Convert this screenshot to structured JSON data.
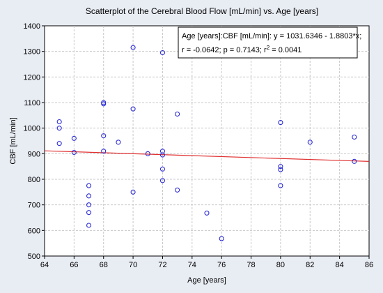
{
  "chart_data": {
    "type": "scatter",
    "title": "Scatterplot of the Cerebral Blood Flow [mL/min] vs. Age [years]",
    "xlabel": "Age [years]",
    "ylabel": "CBF [mL/min]",
    "xlim": [
      64,
      86
    ],
    "ylim": [
      500,
      1400
    ],
    "xticks": [
      64,
      66,
      68,
      70,
      72,
      74,
      76,
      78,
      80,
      82,
      84,
      86
    ],
    "yticks": [
      500,
      600,
      700,
      800,
      900,
      1000,
      1100,
      1200,
      1300,
      1400
    ],
    "grid": true,
    "colors": {
      "points": "#2b2bd6",
      "fit_line": "#e03030",
      "plot_background": "#ffffff",
      "window_background": "#e8ecf3"
    },
    "regression": {
      "intercept": 1031.6346,
      "slope": -1.8803,
      "label_line1": "Age [years]:CBF [mL/min]:  y = 1031.6346 - 1.8803*x;",
      "label_line2_parts": [
        "r = -0.0642; p = 0.7143; r",
        "2",
        " = 0.0041"
      ]
    },
    "points": [
      {
        "x": 65,
        "y": 1025
      },
      {
        "x": 65,
        "y": 1000
      },
      {
        "x": 65,
        "y": 940
      },
      {
        "x": 66,
        "y": 960
      },
      {
        "x": 66,
        "y": 905
      },
      {
        "x": 67,
        "y": 775
      },
      {
        "x": 67,
        "y": 735
      },
      {
        "x": 67,
        "y": 700
      },
      {
        "x": 67,
        "y": 670
      },
      {
        "x": 67,
        "y": 620
      },
      {
        "x": 68,
        "y": 1100
      },
      {
        "x": 68,
        "y": 1095
      },
      {
        "x": 68,
        "y": 970
      },
      {
        "x": 68,
        "y": 910
      },
      {
        "x": 69,
        "y": 945
      },
      {
        "x": 70,
        "y": 1315
      },
      {
        "x": 70,
        "y": 1075
      },
      {
        "x": 70,
        "y": 750
      },
      {
        "x": 71,
        "y": 900
      },
      {
        "x": 72,
        "y": 1295
      },
      {
        "x": 72,
        "y": 910
      },
      {
        "x": 72,
        "y": 895
      },
      {
        "x": 72,
        "y": 840
      },
      {
        "x": 72,
        "y": 795
      },
      {
        "x": 73,
        "y": 1055
      },
      {
        "x": 73,
        "y": 758
      },
      {
        "x": 75,
        "y": 668
      },
      {
        "x": 76,
        "y": 568
      },
      {
        "x": 80,
        "y": 1022
      },
      {
        "x": 80,
        "y": 850
      },
      {
        "x": 80,
        "y": 838
      },
      {
        "x": 80,
        "y": 775
      },
      {
        "x": 82,
        "y": 945
      },
      {
        "x": 85,
        "y": 965
      },
      {
        "x": 85,
        "y": 870
      }
    ]
  }
}
